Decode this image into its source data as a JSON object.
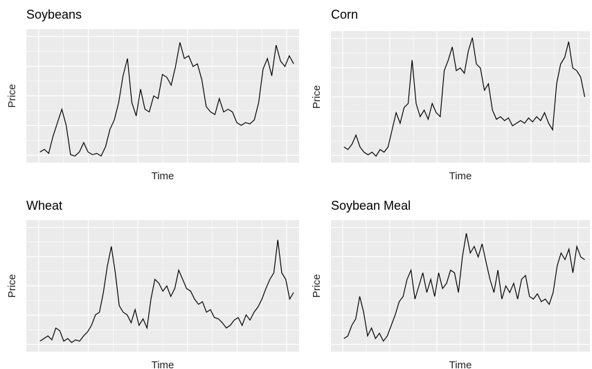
{
  "chart_data": [
    {
      "type": "line",
      "title": "Soybeans",
      "x_label": "Time",
      "y_label": "Price",
      "color": "#000000",
      "ylim": [
        0,
        100
      ],
      "grid": true,
      "values": [
        8,
        10,
        7,
        20,
        30,
        40,
        28,
        6,
        5,
        8,
        15,
        8,
        6,
        7,
        5,
        12,
        25,
        32,
        45,
        65,
        78,
        45,
        35,
        55,
        40,
        38,
        50,
        48,
        66,
        64,
        58,
        72,
        90,
        78,
        80,
        72,
        74,
        62,
        42,
        38,
        36,
        48,
        38,
        40,
        38,
        30,
        28,
        30,
        29,
        32,
        45,
        70,
        78,
        65,
        88,
        76,
        72,
        80,
        74
      ]
    },
    {
      "type": "line",
      "title": "Corn",
      "x_label": "Time",
      "y_label": "Price",
      "color": "#000000",
      "ylim": [
        0,
        100
      ],
      "grid": true,
      "values": [
        12,
        10,
        14,
        21,
        12,
        8,
        6,
        8,
        5,
        10,
        8,
        12,
        25,
        38,
        30,
        42,
        45,
        78,
        45,
        35,
        40,
        33,
        45,
        38,
        35,
        70,
        78,
        88,
        70,
        72,
        68,
        85,
        95,
        75,
        72,
        55,
        60,
        40,
        33,
        35,
        32,
        34,
        28,
        30,
        32,
        30,
        34,
        31,
        35,
        32,
        38,
        30,
        25,
        60,
        75,
        80,
        92,
        72,
        70,
        65,
        50
      ]
    },
    {
      "type": "line",
      "title": "Wheat",
      "x_label": "Time",
      "y_label": "Price",
      "color": "#000000",
      "ylim": [
        0,
        100
      ],
      "grid": true,
      "values": [
        8,
        10,
        12,
        9,
        18,
        16,
        8,
        10,
        7,
        9,
        8,
        12,
        15,
        20,
        28,
        30,
        45,
        65,
        80,
        60,
        35,
        30,
        28,
        22,
        32,
        20,
        25,
        18,
        40,
        55,
        52,
        46,
        50,
        42,
        48,
        62,
        55,
        48,
        46,
        40,
        36,
        38,
        30,
        32,
        26,
        25,
        22,
        18,
        20,
        24,
        26,
        20,
        28,
        24,
        30,
        34,
        40,
        48,
        55,
        60,
        85,
        60,
        55,
        40,
        45
      ]
    },
    {
      "type": "line",
      "title": "Soybean Meal",
      "x_label": "Time",
      "y_label": "Price",
      "color": "#000000",
      "ylim": [
        0,
        100
      ],
      "grid": true,
      "values": [
        10,
        12,
        20,
        25,
        42,
        30,
        12,
        18,
        10,
        14,
        8,
        12,
        20,
        28,
        38,
        42,
        55,
        62,
        40,
        50,
        60,
        45,
        55,
        42,
        60,
        48,
        52,
        62,
        60,
        45,
        72,
        90,
        75,
        80,
        72,
        82,
        68,
        55,
        45,
        62,
        40,
        50,
        45,
        52,
        40,
        55,
        58,
        42,
        40,
        44,
        38,
        40,
        36,
        45,
        65,
        75,
        70,
        78,
        60,
        80,
        72,
        70
      ]
    }
  ]
}
